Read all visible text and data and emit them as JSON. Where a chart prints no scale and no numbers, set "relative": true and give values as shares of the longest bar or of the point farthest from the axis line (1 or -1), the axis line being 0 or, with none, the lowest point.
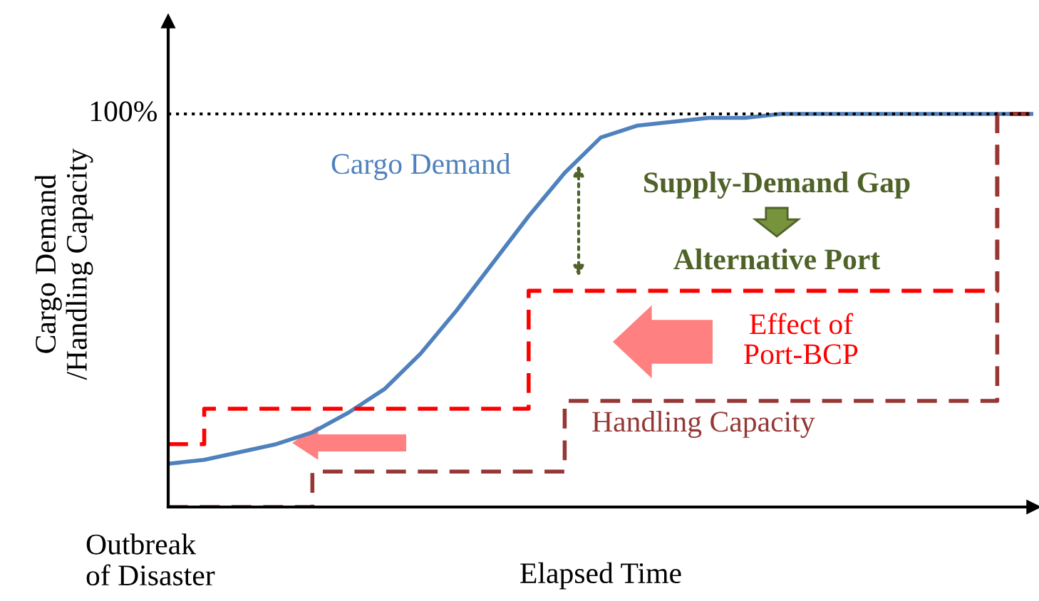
{
  "chart_data": {
    "type": "line",
    "relative": true,
    "xlabel": "Elapsed Time",
    "ylabel": "Cargo Demand\n/Handling Capacity",
    "categories": [
      null,
      null,
      null,
      null,
      null,
      null,
      null,
      null,
      null,
      null,
      null,
      null,
      null,
      null,
      null,
      null,
      null,
      null,
      null,
      null,
      null,
      null,
      null,
      null,
      null
    ],
    "series": [
      {
        "name": "Cargo Demand",
        "color": "#4f81bd",
        "line_style": "solid",
        "values": [
          0.11,
          0.12,
          0.14,
          0.16,
          0.19,
          0.24,
          0.3,
          0.39,
          0.5,
          0.62,
          0.74,
          0.85,
          0.94,
          0.97,
          0.98,
          0.99,
          0.99,
          1,
          1,
          1,
          1,
          1,
          1,
          1,
          1
        ]
      },
      {
        "name": "Effect of\nPort-BCP",
        "color": "#ff0000",
        "type": "step",
        "line_style": "dashed",
        "values": [
          0.16,
          0.25,
          0.25,
          0.25,
          0.25,
          0.25,
          0.25,
          0.25,
          0.25,
          0.25,
          0.55,
          0.55,
          0.55,
          0.55,
          0.55,
          0.55,
          0.55,
          0.55,
          0.55,
          0.55,
          0.55,
          0.55,
          0.55,
          1,
          1
        ]
      },
      {
        "name": "Handling Capacity",
        "color": "#953735",
        "type": "step",
        "line_style": "dashed",
        "values": [
          0,
          0,
          0,
          0,
          0.09,
          0.09,
          0.09,
          0.09,
          0.09,
          0.09,
          0.09,
          0.27,
          0.27,
          0.27,
          0.27,
          0.27,
          0.27,
          0.27,
          0.27,
          0.27,
          0.27,
          0.27,
          0.27,
          1,
          1
        ]
      }
    ],
    "ref_lines": [
      {
        "axis": "y",
        "value": 1,
        "label": "100%",
        "color": "#000000",
        "line_style": "dotted"
      }
    ],
    "annotations": [
      "Supply-Demand Gap",
      "Alternative Port",
      "Outbreak\nof Disaster"
    ],
    "legend": false
  }
}
